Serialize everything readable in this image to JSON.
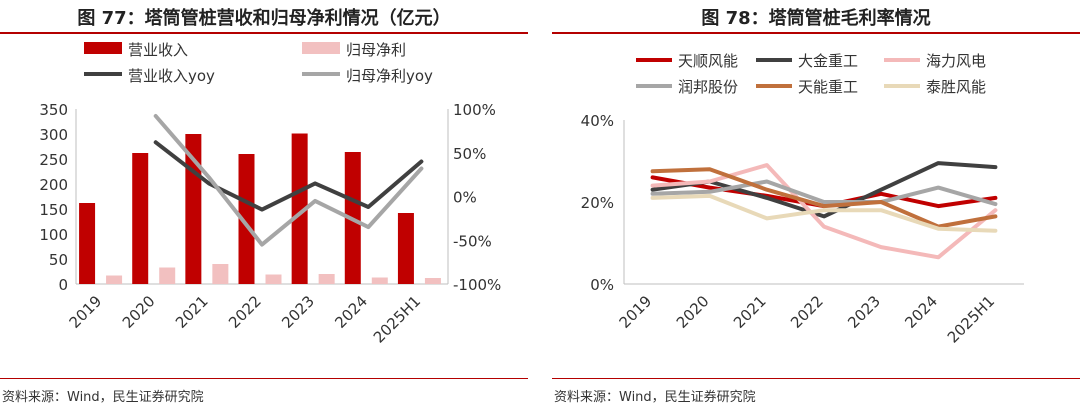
{
  "colors": {
    "accent": "#b40000",
    "revenue_bar": "#c00000",
    "profit_bar": "#f2c0c0",
    "revenue_yoy": "#404040",
    "profit_yoy": "#a6a6a6"
  },
  "chart_data": [
    {
      "type": "bar",
      "title": "图 77：塔筒管桩营收和归母净利情况（亿元）",
      "source": "资料来源：Wind，民生证券研究院",
      "categories": [
        "2019",
        "2020",
        "2021",
        "2022",
        "2023",
        "2024",
        "2025H1"
      ],
      "series": [
        {
          "name": "营业收入",
          "kind": "bar",
          "axis": "left",
          "color": "#c00000",
          "values": [
            162,
            262,
            300,
            260,
            301,
            264,
            142
          ]
        },
        {
          "name": "归母净利",
          "kind": "bar",
          "axis": "left",
          "color": "#f2c0c0",
          "values": [
            17,
            33,
            40,
            19,
            20,
            13,
            12
          ]
        },
        {
          "name": "营业收入yoy",
          "kind": "line",
          "axis": "right",
          "color": "#404040",
          "values": [
            null,
            62,
            15,
            -15,
            15,
            -12,
            40
          ]
        },
        {
          "name": "归母净利yoy",
          "kind": "line",
          "axis": "right",
          "color": "#a6a6a6",
          "values": [
            null,
            92,
            22,
            -55,
            -5,
            -35,
            32
          ]
        }
      ],
      "ylim": [
        0,
        350
      ],
      "yticks": [
        0,
        50,
        100,
        150,
        200,
        250,
        300,
        350
      ],
      "y2lim": [
        -100,
        100
      ],
      "y2ticks": [
        -100,
        -50,
        0,
        50,
        100
      ],
      "y2ticklabels": [
        "-100%",
        "-50%",
        "0%",
        "50%",
        "100%"
      ],
      "legend_position": "top",
      "grid": false
    },
    {
      "type": "line",
      "title": "图 78：塔筒管桩毛利率情况",
      "source": "资料来源：Wind，民生证券研究院",
      "categories": [
        "2019",
        "2020",
        "2021",
        "2022",
        "2023",
        "2024",
        "2025H1"
      ],
      "series": [
        {
          "name": "天顺风能",
          "color": "#c00000",
          "values": [
            26,
            23.5,
            21.5,
            19,
            22,
            19,
            21
          ]
        },
        {
          "name": "大金重工",
          "color": "#404040",
          "values": [
            23,
            25,
            21,
            16.5,
            23,
            29.5,
            28.5
          ]
        },
        {
          "name": "海力风电",
          "color": "#f4b9b9",
          "values": [
            24,
            25,
            29,
            14,
            9,
            6.5,
            18
          ]
        },
        {
          "name": "润邦股份",
          "color": "#a6a6a6",
          "values": [
            22,
            22.5,
            25,
            20,
            20,
            23.5,
            19.5
          ]
        },
        {
          "name": "天能重工",
          "color": "#c0703c",
          "values": [
            27.5,
            28,
            23,
            19,
            20,
            14,
            16.5
          ]
        },
        {
          "name": "泰胜风能",
          "color": "#e8d9b8",
          "values": [
            21,
            21.5,
            16,
            18,
            18,
            13.5,
            13
          ]
        }
      ],
      "ylim": [
        0,
        40
      ],
      "yticks": [
        0,
        20,
        40
      ],
      "yticklabels": [
        "0%",
        "20%",
        "40%"
      ],
      "legend_position": "top",
      "grid": false
    }
  ]
}
